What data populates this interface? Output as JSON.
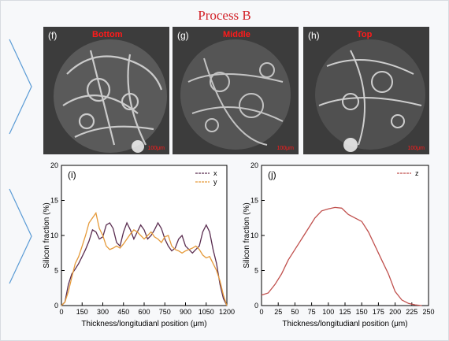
{
  "figure_title": "Process B",
  "panels": [
    {
      "label": "(f)",
      "text": "Bottom",
      "scale": "100μm"
    },
    {
      "label": "(g)",
      "text": "Middle",
      "scale": "100μm"
    },
    {
      "label": "(h)",
      "text": "Top",
      "scale": "100μm"
    }
  ],
  "colors": {
    "title": "#d2232a",
    "series_x": "#5a2d50",
    "series_y": "#e59a3a",
    "series_z": "#c0504d"
  },
  "chart_data": [
    {
      "type": "line",
      "panel_label": "(i)",
      "xlabel": "Thickness/longitudianl position (μm)",
      "ylabel": "Silicon fraction (%)",
      "xlim": [
        0,
        1200
      ],
      "ylim": [
        0,
        20
      ],
      "xticks": [
        0,
        150,
        300,
        450,
        600,
        750,
        900,
        1050,
        1200
      ],
      "yticks": [
        0,
        5,
        10,
        15,
        20
      ],
      "legend": "top-right",
      "series": [
        {
          "name": "x",
          "x": [
            0,
            25,
            50,
            75,
            100,
            125,
            150,
            175,
            200,
            225,
            250,
            275,
            300,
            325,
            350,
            375,
            400,
            425,
            450,
            475,
            500,
            525,
            550,
            575,
            600,
            625,
            650,
            675,
            700,
            725,
            750,
            775,
            800,
            825,
            850,
            875,
            900,
            925,
            950,
            975,
            1000,
            1025,
            1050,
            1075,
            1100,
            1125,
            1150,
            1175,
            1200
          ],
          "values": [
            0,
            0.5,
            3,
            4.5,
            5.2,
            6,
            7,
            8,
            9.2,
            10.8,
            10.5,
            9.5,
            9.8,
            11.5,
            11.8,
            11,
            9,
            8.5,
            10.5,
            11.8,
            10.8,
            9.5,
            10.5,
            11.5,
            10.8,
            9.5,
            10,
            10.8,
            11.8,
            11,
            9.5,
            8.5,
            7.8,
            8.2,
            9.5,
            10,
            8.5,
            8,
            7.5,
            8,
            8.5,
            10.5,
            11.5,
            10.5,
            8,
            6,
            3,
            1,
            0
          ]
        },
        {
          "name": "y",
          "x": [
            0,
            25,
            50,
            75,
            100,
            125,
            150,
            175,
            200,
            225,
            250,
            275,
            300,
            325,
            350,
            375,
            400,
            425,
            450,
            475,
            500,
            525,
            550,
            575,
            600,
            625,
            650,
            675,
            700,
            725,
            750,
            775,
            800,
            825,
            850,
            875,
            900,
            925,
            950,
            975,
            1000,
            1025,
            1050,
            1075,
            1100,
            1125,
            1150,
            1175,
            1200
          ],
          "values": [
            0,
            0.5,
            2,
            4,
            6,
            7,
            8.5,
            10,
            11.8,
            12.5,
            13.2,
            11,
            10,
            8.5,
            8,
            8.2,
            8.5,
            8.2,
            8.8,
            9.5,
            10.2,
            10.8,
            10.5,
            10,
            9.5,
            10,
            10.5,
            9.8,
            9.5,
            9,
            9.8,
            10,
            8.5,
            8,
            7.8,
            7.5,
            7.8,
            8,
            8.2,
            8.5,
            8,
            7.2,
            6.8,
            7,
            6,
            5,
            3.5,
            1.5,
            0
          ]
        }
      ]
    },
    {
      "type": "line",
      "panel_label": "(j)",
      "xlabel": "Thickness/longitudianl position (μm)",
      "ylabel": "Silicon fraction (%)",
      "xlim": [
        0,
        250
      ],
      "ylim": [
        0,
        20
      ],
      "xticks": [
        0,
        25,
        50,
        75,
        100,
        125,
        150,
        175,
        200,
        225,
        250
      ],
      "yticks": [
        0,
        5,
        10,
        15,
        20
      ],
      "legend": "top-right",
      "series": [
        {
          "name": "z",
          "x": [
            0,
            10,
            20,
            30,
            40,
            50,
            60,
            70,
            80,
            90,
            100,
            110,
            120,
            130,
            140,
            150,
            160,
            170,
            180,
            190,
            200,
            210,
            220,
            230,
            240
          ],
          "values": [
            1.5,
            1.8,
            3,
            4.5,
            6.5,
            8,
            9.5,
            11,
            12.5,
            13.5,
            13.8,
            14,
            13.9,
            13,
            12.5,
            12,
            10.5,
            8.5,
            6.5,
            4.5,
            2,
            0.8,
            0.3,
            0.1,
            0
          ]
        }
      ]
    }
  ]
}
